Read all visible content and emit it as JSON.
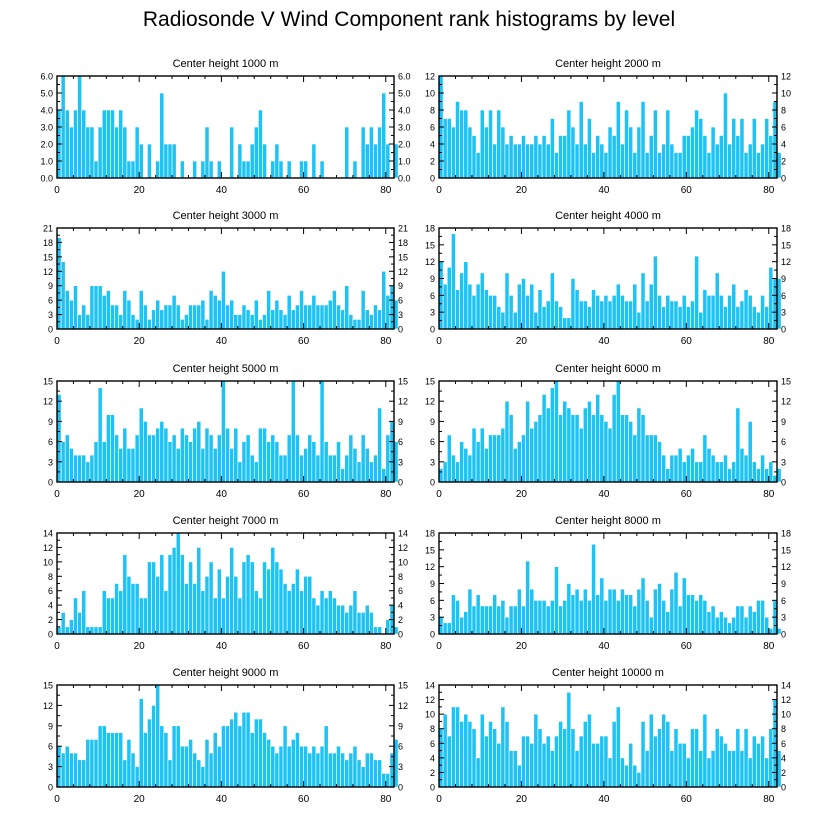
{
  "title": "Radiosonde V Wind Component rank histograms by level",
  "colors": {
    "bar": "#1ec3f5",
    "bar_edge": "#ffffff",
    "axis": "#000000"
  },
  "chart_data": [
    {
      "type": "bar",
      "title": "Center height 1000 m",
      "ylim": [
        0,
        6
      ],
      "yticks": [
        0,
        1,
        2,
        3,
        4,
        5,
        6
      ],
      "ytick_labels": [
        "0.0",
        "1.0",
        "2.0",
        "3.0",
        "4.0",
        "5.0",
        "6.0"
      ],
      "xlim": [
        0,
        82
      ],
      "xticks": [
        0,
        20,
        40,
        60,
        80
      ],
      "xtick_labels": [
        "0",
        "20",
        "40",
        "60",
        "80"
      ],
      "values": [
        4,
        6,
        4,
        3,
        4,
        6,
        4,
        3,
        3,
        1,
        3,
        4,
        4,
        4,
        3,
        4,
        3,
        1,
        1,
        3,
        2,
        0,
        2,
        0,
        1,
        5,
        2,
        2,
        2,
        0,
        1,
        0,
        0,
        1,
        0,
        1,
        3,
        1,
        0,
        1,
        0,
        0,
        3,
        0,
        2,
        1,
        1,
        2,
        3,
        4,
        2,
        0,
        1,
        2,
        1,
        0,
        1,
        0,
        0,
        1,
        1,
        0,
        2,
        0,
        1,
        0,
        0,
        0,
        0,
        0,
        3,
        0,
        1,
        0,
        3,
        2,
        3,
        2,
        3,
        5,
        2,
        0,
        2
      ],
      "xlabel": "",
      "ylabel": ""
    },
    {
      "type": "bar",
      "title": "Center height 2000 m",
      "ylim": [
        0,
        12
      ],
      "yticks": [
        0,
        2,
        4,
        6,
        8,
        10,
        12
      ],
      "ytick_labels": [
        "0",
        "2",
        "4",
        "6",
        "8",
        "10",
        "12"
      ],
      "xlim": [
        0,
        82
      ],
      "xticks": [
        0,
        20,
        40,
        60,
        80
      ],
      "xtick_labels": [
        "0",
        "20",
        "40",
        "60",
        "80"
      ],
      "values": [
        12,
        7,
        7,
        6,
        9,
        8,
        8,
        6,
        5,
        3,
        8,
        6,
        8,
        4,
        8,
        6,
        4,
        5,
        4,
        4,
        5,
        4,
        4,
        5,
        4,
        5,
        4,
        7,
        3,
        5,
        5,
        8,
        6,
        4,
        9,
        4,
        7,
        3,
        5,
        4,
        3,
        6,
        5,
        9,
        4,
        8,
        6,
        3,
        6,
        9,
        3,
        5,
        8,
        3,
        4,
        8,
        4,
        3,
        3,
        5,
        5,
        6,
        8,
        7,
        5,
        3,
        6,
        4,
        5,
        10,
        4,
        7,
        5,
        7,
        3,
        4,
        7,
        3,
        4,
        7,
        5,
        9,
        3
      ],
      "xlabel": "",
      "ylabel": ""
    },
    {
      "type": "bar",
      "title": "Center height 3000 m",
      "ylim": [
        0,
        21
      ],
      "yticks": [
        0,
        3,
        6,
        9,
        12,
        15,
        18,
        21
      ],
      "ytick_labels": [
        "0",
        "3",
        "6",
        "9",
        "12",
        "15",
        "18",
        "21"
      ],
      "xlim": [
        0,
        82
      ],
      "xticks": [
        0,
        20,
        40,
        60,
        80
      ],
      "xtick_labels": [
        "0",
        "20",
        "40",
        "60",
        "80"
      ],
      "values": [
        19,
        14,
        8,
        6,
        9,
        3,
        5,
        3,
        9,
        9,
        9,
        7,
        8,
        5,
        5,
        3,
        8,
        6,
        3,
        2,
        8,
        5,
        2,
        4,
        6,
        4,
        5,
        5,
        7,
        5,
        2,
        3,
        5,
        5,
        5,
        6,
        2,
        8,
        7,
        6,
        12,
        5,
        6,
        3,
        3,
        5,
        4,
        3,
        6,
        2,
        3,
        8,
        4,
        6,
        4,
        3,
        7,
        4,
        5,
        8,
        5,
        5,
        7,
        5,
        5,
        5,
        6,
        8,
        5,
        4,
        9,
        3,
        2,
        2,
        8,
        4,
        3,
        5,
        4,
        12,
        7,
        9,
        6
      ],
      "xlabel": "",
      "ylabel": ""
    },
    {
      "type": "bar",
      "title": "Center height 4000 m",
      "ylim": [
        0,
        18
      ],
      "yticks": [
        0,
        3,
        6,
        9,
        12,
        15,
        18
      ],
      "ytick_labels": [
        "0",
        "3",
        "6",
        "9",
        "12",
        "15",
        "18"
      ],
      "xlim": [
        0,
        82
      ],
      "xticks": [
        0,
        20,
        40,
        60,
        80
      ],
      "xtick_labels": [
        "0",
        "20",
        "40",
        "60",
        "80"
      ],
      "values": [
        12,
        8,
        11,
        17,
        7,
        10,
        12,
        8,
        6,
        8,
        10,
        7,
        6,
        6,
        4,
        3,
        10,
        6,
        3,
        8,
        9,
        6,
        8,
        3,
        7,
        4,
        5,
        10,
        5,
        4,
        2,
        2,
        9,
        7,
        5,
        5,
        4,
        7,
        6,
        5,
        6,
        5,
        6,
        8,
        6,
        5,
        5,
        8,
        3,
        10,
        5,
        8,
        13,
        6,
        4,
        6,
        5,
        5,
        4,
        6,
        4,
        5,
        13,
        3,
        7,
        6,
        6,
        10,
        6,
        4,
        6,
        8,
        4,
        5,
        7,
        6,
        4,
        3,
        6,
        4,
        11,
        9,
        9
      ],
      "xlabel": "",
      "ylabel": ""
    },
    {
      "type": "bar",
      "title": "Center height 5000 m",
      "ylim": [
        0,
        15
      ],
      "yticks": [
        0,
        3,
        6,
        9,
        12,
        15
      ],
      "ytick_labels": [
        "0",
        "3",
        "6",
        "9",
        "12",
        "15"
      ],
      "xlim": [
        0,
        82
      ],
      "xticks": [
        0,
        20,
        40,
        60,
        80
      ],
      "xtick_labels": [
        "0",
        "20",
        "40",
        "60",
        "80"
      ],
      "values": [
        13,
        6,
        7,
        5,
        4,
        4,
        4,
        3,
        4,
        6,
        14,
        6,
        10,
        10,
        7,
        5,
        8,
        5,
        5,
        7,
        11,
        9,
        7,
        7,
        8,
        9,
        8,
        6,
        7,
        5,
        8,
        7,
        6,
        8,
        9,
        5,
        8,
        7,
        5,
        7,
        15,
        8,
        5,
        8,
        3,
        6,
        7,
        4,
        3,
        8,
        8,
        6,
        7,
        6,
        4,
        4,
        7,
        15,
        7,
        4,
        5,
        7,
        6,
        4,
        15,
        6,
        4,
        4,
        6,
        2,
        4,
        7,
        5,
        3,
        7,
        5,
        3,
        4,
        11,
        2,
        7,
        9,
        6
      ],
      "xlabel": "",
      "ylabel": ""
    },
    {
      "type": "bar",
      "title": "Center height 6000 m",
      "ylim": [
        0,
        15
      ],
      "yticks": [
        0,
        3,
        6,
        9,
        12,
        15
      ],
      "ytick_labels": [
        "0",
        "3",
        "6",
        "9",
        "12",
        "15"
      ],
      "xlim": [
        0,
        82
      ],
      "xticks": [
        0,
        20,
        40,
        60,
        80
      ],
      "xtick_labels": [
        "0",
        "20",
        "40",
        "60",
        "80"
      ],
      "values": [
        2,
        3,
        7,
        4,
        3,
        6,
        5,
        4,
        8,
        6,
        8,
        5,
        7,
        7,
        7,
        8,
        12,
        10,
        5,
        6,
        7,
        12,
        8,
        9,
        10,
        13,
        11,
        14,
        15,
        10,
        12,
        11,
        10,
        10,
        8,
        11,
        12,
        10,
        13,
        10,
        9,
        8,
        13,
        15,
        10,
        10,
        9,
        7,
        11,
        10,
        7,
        7,
        7,
        6,
        4,
        2,
        4,
        4,
        5,
        3,
        4,
        5,
        3,
        3,
        7,
        5,
        4,
        3,
        3,
        4,
        2,
        3,
        11,
        5,
        4,
        9,
        3,
        2,
        4,
        2,
        3,
        1,
        2
      ],
      "xlabel": "",
      "ylabel": ""
    },
    {
      "type": "bar",
      "title": "Center height 7000 m",
      "ylim": [
        0,
        14
      ],
      "yticks": [
        0,
        2,
        4,
        6,
        8,
        10,
        12,
        14
      ],
      "ytick_labels": [
        "0",
        "2",
        "4",
        "6",
        "8",
        "10",
        "12",
        "14"
      ],
      "xlim": [
        0,
        82
      ],
      "xticks": [
        0,
        20,
        40,
        60,
        80
      ],
      "xtick_labels": [
        "0",
        "20",
        "40",
        "60",
        "80"
      ],
      "values": [
        1,
        3,
        1,
        2,
        5,
        3,
        6,
        1,
        1,
        1,
        1,
        6,
        5,
        5,
        7,
        6,
        11,
        8,
        7,
        7,
        5,
        5,
        10,
        10,
        8,
        11,
        6,
        11,
        12,
        14,
        11,
        7,
        10,
        7,
        12,
        6,
        8,
        10,
        5,
        9,
        5,
        8,
        12,
        8,
        5,
        10,
        11,
        10,
        6,
        5,
        10,
        9,
        12,
        10,
        9,
        7,
        6,
        7,
        9,
        6,
        8,
        8,
        5,
        4,
        6,
        5,
        6,
        5,
        4,
        4,
        3,
        4,
        6,
        3,
        3,
        4,
        3,
        1,
        1,
        0,
        2,
        4,
        1
      ],
      "xlabel": "",
      "ylabel": ""
    },
    {
      "type": "bar",
      "title": "Center height 8000 m",
      "ylim": [
        0,
        18
      ],
      "yticks": [
        0,
        3,
        6,
        9,
        12,
        15,
        18
      ],
      "ytick_labels": [
        "0",
        "3",
        "6",
        "9",
        "12",
        "15",
        "18"
      ],
      "xlim": [
        0,
        82
      ],
      "xticks": [
        0,
        20,
        40,
        60,
        80
      ],
      "xtick_labels": [
        "0",
        "20",
        "40",
        "60",
        "80"
      ],
      "values": [
        3,
        2,
        2,
        7,
        6,
        3,
        4,
        8,
        5,
        7,
        5,
        5,
        5,
        7,
        5,
        6,
        3,
        5,
        5,
        8,
        5,
        13,
        8,
        6,
        6,
        6,
        5,
        6,
        12,
        5,
        6,
        9,
        7,
        8,
        6,
        8,
        6,
        16,
        7,
        10,
        6,
        8,
        8,
        6,
        8,
        7,
        7,
        5,
        8,
        10,
        6,
        3,
        8,
        9,
        6,
        4,
        8,
        11,
        5,
        10,
        7,
        7,
        6,
        7,
        6,
        4,
        5,
        3,
        4,
        3,
        2,
        3,
        5,
        5,
        3,
        5,
        4,
        6,
        6,
        3,
        1,
        6,
        1
      ],
      "xlabel": "",
      "ylabel": ""
    },
    {
      "type": "bar",
      "title": "Center height 9000 m",
      "ylim": [
        0,
        15
      ],
      "yticks": [
        0,
        3,
        6,
        9,
        12,
        15
      ],
      "ytick_labels": [
        "0",
        "3",
        "6",
        "9",
        "12",
        "15"
      ],
      "xlim": [
        0,
        82
      ],
      "xticks": [
        0,
        20,
        40,
        60,
        80
      ],
      "xtick_labels": [
        "0",
        "20",
        "40",
        "60",
        "80"
      ],
      "values": [
        6,
        5,
        6,
        5,
        5,
        4,
        4,
        7,
        7,
        7,
        9,
        9,
        8,
        8,
        8,
        8,
        4,
        7,
        5,
        3,
        13,
        8,
        10,
        12,
        15,
        9,
        8,
        4,
        9,
        9,
        6,
        6,
        7,
        5,
        4,
        3,
        7,
        5,
        8,
        6,
        9,
        9,
        10,
        11,
        9,
        11,
        11,
        8,
        10,
        10,
        8,
        7,
        6,
        5,
        6,
        9,
        6,
        7,
        8,
        6,
        6,
        5,
        6,
        5,
        6,
        9,
        5,
        5,
        6,
        5,
        4,
        5,
        6,
        4,
        3,
        5,
        5,
        4,
        4,
        2,
        2,
        5,
        7
      ],
      "xlabel": "",
      "ylabel": ""
    },
    {
      "type": "bar",
      "title": "Center height 10000 m",
      "ylim": [
        0,
        14
      ],
      "yticks": [
        0,
        2,
        4,
        6,
        8,
        10,
        12,
        14
      ],
      "ytick_labels": [
        "0",
        "2",
        "4",
        "6",
        "8",
        "10",
        "12",
        "14"
      ],
      "xlim": [
        0,
        82
      ],
      "xticks": [
        0,
        20,
        40,
        60,
        80
      ],
      "xtick_labels": [
        "0",
        "20",
        "40",
        "60",
        "80"
      ],
      "values": [
        8,
        10,
        7,
        11,
        11,
        9,
        10,
        9,
        8,
        4,
        10,
        7,
        9,
        8,
        6,
        11,
        9,
        5,
        5,
        3,
        7,
        7,
        6,
        10,
        8,
        6,
        7,
        5,
        7,
        9,
        8,
        13,
        8,
        5,
        7,
        9,
        10,
        6,
        6,
        7,
        7,
        4,
        9,
        11,
        4,
        3,
        6,
        3,
        2,
        9,
        5,
        10,
        7,
        8,
        10,
        9,
        5,
        8,
        6,
        6,
        4,
        8,
        8,
        5,
        10,
        4,
        5,
        8,
        7,
        6,
        5,
        5,
        8,
        5,
        8,
        4,
        7,
        6,
        7,
        4,
        8,
        12,
        5
      ],
      "xlabel": "",
      "ylabel": ""
    }
  ]
}
